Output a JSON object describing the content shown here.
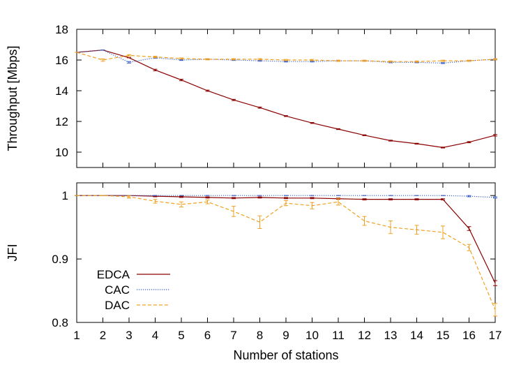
{
  "chart_data": [
    {
      "type": "line",
      "title": "",
      "xlabel": "",
      "ylabel": "Throughput [Mbps]",
      "x": [
        1,
        2,
        3,
        4,
        5,
        6,
        7,
        8,
        9,
        10,
        11,
        12,
        13,
        14,
        15,
        16,
        17
      ],
      "xlim": [
        1,
        17
      ],
      "ylim": [
        9,
        18
      ],
      "yticks": [
        10,
        12,
        14,
        16,
        18
      ],
      "grid": false,
      "series": [
        {
          "name": "EDCA",
          "color": "#8b0000",
          "dash": "solid",
          "values": [
            16.5,
            16.65,
            16.15,
            15.35,
            14.7,
            14.0,
            13.4,
            12.9,
            12.35,
            11.9,
            11.5,
            11.1,
            10.75,
            10.55,
            10.3,
            10.65,
            11.1
          ],
          "errors": [
            0,
            0,
            0,
            0.05,
            0.05,
            0.04,
            0.04,
            0.04,
            0.03,
            0.03,
            0.03,
            0.03,
            0.03,
            0.03,
            0.03,
            0.04,
            0.05
          ]
        },
        {
          "name": "CAC",
          "color": "#3b5fc9",
          "dash": "dotted",
          "values": [
            16.5,
            16.65,
            15.85,
            16.15,
            16.0,
            16.05,
            16.0,
            15.95,
            15.9,
            15.9,
            15.95,
            15.95,
            15.85,
            15.85,
            15.8,
            15.95,
            16.05
          ],
          "errors": [
            0,
            0,
            0.05,
            0.04,
            0.03,
            0.03,
            0.03,
            0.03,
            0.03,
            0.03,
            0.03,
            0.03,
            0.03,
            0.03,
            0.03,
            0.03,
            0.03
          ]
        },
        {
          "name": "DAC",
          "color": "#f0a020",
          "dash": "dashed",
          "values": [
            16.5,
            16.0,
            16.3,
            16.2,
            16.1,
            16.05,
            16.05,
            16.05,
            16.0,
            16.0,
            15.95,
            15.95,
            15.9,
            15.9,
            15.95,
            15.95,
            16.05
          ],
          "errors": [
            0,
            0.08,
            0.05,
            0.05,
            0.04,
            0.04,
            0.04,
            0.04,
            0.04,
            0.04,
            0.04,
            0.04,
            0.04,
            0.04,
            0.04,
            0.04,
            0.04
          ]
        }
      ]
    },
    {
      "type": "line",
      "title": "",
      "xlabel": "Number of stations",
      "ylabel": "JFI",
      "x": [
        1,
        2,
        3,
        4,
        5,
        6,
        7,
        8,
        9,
        10,
        11,
        12,
        13,
        14,
        15,
        16,
        17
      ],
      "xlim": [
        1,
        17
      ],
      "ylim": [
        0.8,
        1.02
      ],
      "yticks": [
        0.8,
        0.9,
        1
      ],
      "ytick_labels": [
        "0.8",
        "0.9",
        "1"
      ],
      "xticks": [
        1,
        2,
        3,
        4,
        5,
        6,
        7,
        8,
        9,
        10,
        11,
        12,
        13,
        14,
        15,
        16,
        17
      ],
      "grid": false,
      "legend": "bottom-left",
      "series": [
        {
          "name": "EDCA",
          "color": "#8b0000",
          "dash": "solid",
          "values": [
            1.0,
            1.0,
            1.0,
            0.999,
            0.998,
            0.997,
            0.996,
            0.997,
            0.996,
            0.996,
            0.995,
            0.994,
            0.994,
            0.994,
            0.994,
            0.948,
            0.862
          ],
          "errors": [
            0,
            0,
            0,
            0.001,
            0.001,
            0.001,
            0.001,
            0.001,
            0.001,
            0.001,
            0.001,
            0.001,
            0.001,
            0.001,
            0.001,
            0.003,
            0.004
          ]
        },
        {
          "name": "CAC",
          "color": "#3b5fc9",
          "dash": "dotted",
          "values": [
            1.0,
            1.0,
            1.0,
            1.0,
            1.0,
            1.0,
            1.0,
            1.0,
            1.0,
            1.0,
            1.0,
            1.0,
            1.0,
            1.0,
            1.0,
            0.999,
            0.997
          ],
          "errors": [
            0,
            0,
            0,
            0,
            0,
            0,
            0,
            0,
            0,
            0,
            0,
            0,
            0,
            0,
            0,
            0.001,
            0.001
          ]
        },
        {
          "name": "DAC",
          "color": "#f0a020",
          "dash": "dashed",
          "values": [
            1.0,
            1.0,
            0.998,
            0.991,
            0.986,
            0.99,
            0.975,
            0.958,
            0.988,
            0.984,
            0.99,
            0.96,
            0.95,
            0.946,
            0.942,
            0.918,
            0.82
          ],
          "errors": [
            0,
            0,
            0.002,
            0.003,
            0.004,
            0.003,
            0.008,
            0.01,
            0.004,
            0.005,
            0.005,
            0.007,
            0.01,
            0.007,
            0.01,
            0.005,
            0.01
          ]
        }
      ]
    }
  ]
}
